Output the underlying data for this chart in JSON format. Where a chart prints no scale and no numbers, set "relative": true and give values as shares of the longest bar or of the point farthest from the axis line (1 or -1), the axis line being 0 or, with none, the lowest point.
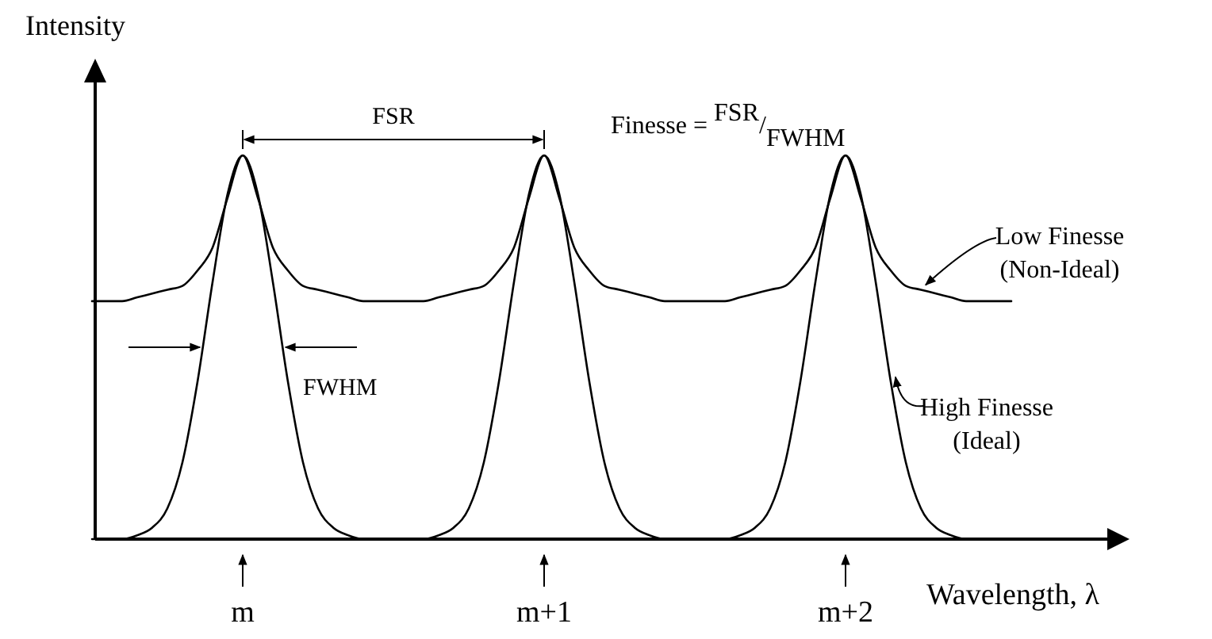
{
  "chart_data": {
    "type": "line",
    "relative": true,
    "ylabel": "Intensity",
    "xlabel": "Wavelength, λ",
    "categories": [
      null,
      null,
      null,
      null,
      null,
      null,
      null,
      null,
      null,
      null,
      "m",
      null,
      null,
      null,
      null,
      null,
      null,
      null,
      null,
      null,
      null,
      null,
      null,
      null,
      null,
      null,
      null,
      null,
      null,
      null,
      "m+1",
      null,
      null,
      null,
      null,
      null,
      null,
      null,
      null,
      null,
      null,
      null,
      null,
      null,
      null,
      null,
      null,
      null,
      null,
      null,
      "m+2",
      null,
      null,
      null,
      null,
      null,
      null,
      null,
      null,
      null,
      null,
      null
    ],
    "series": [
      {
        "name": "Low Finesse (Non-Ideal)",
        "color": "#000000",
        "values": [
          0.62,
          0.62,
          0.62,
          0.63,
          0.64,
          0.65,
          0.66,
          0.7,
          0.76,
          0.89,
          1,
          0.89,
          0.76,
          0.7,
          0.66,
          0.65,
          0.64,
          0.63,
          0.62,
          0.62,
          0.62,
          0.62,
          0.62,
          0.63,
          0.64,
          0.65,
          0.66,
          0.7,
          0.76,
          0.89,
          1,
          0.89,
          0.76,
          0.7,
          0.66,
          0.65,
          0.64,
          0.63,
          0.62,
          0.62,
          0.62,
          0.62,
          0.62,
          0.63,
          0.64,
          0.65,
          0.66,
          0.7,
          0.76,
          0.89,
          1,
          0.89,
          0.76,
          0.7,
          0.66,
          0.65,
          0.64,
          0.63,
          0.62,
          0.62,
          0.62,
          0.62
        ]
      },
      {
        "name": "High Finesse (Ideal)",
        "color": "#000000",
        "values": [
          0,
          0,
          0,
          0.01,
          0.03,
          0.08,
          0.2,
          0.41,
          0.67,
          0.9,
          1,
          0.9,
          0.67,
          0.41,
          0.2,
          0.08,
          0.03,
          0.01,
          0,
          0,
          0,
          0,
          0,
          0.01,
          0.03,
          0.08,
          0.2,
          0.41,
          0.67,
          0.9,
          1,
          0.9,
          0.67,
          0.41,
          0.2,
          0.08,
          0.03,
          0.01,
          0,
          0,
          0,
          0,
          0,
          0.01,
          0.03,
          0.08,
          0.2,
          0.41,
          0.67,
          0.9,
          1,
          0.9,
          0.67,
          0.41,
          0.2,
          0.08,
          0.03,
          0.01,
          0,
          0,
          0,
          0
        ]
      }
    ],
    "annotations": [
      "FSR",
      "FWHM",
      "Finesse = FSR/FWHM"
    ]
  }
}
